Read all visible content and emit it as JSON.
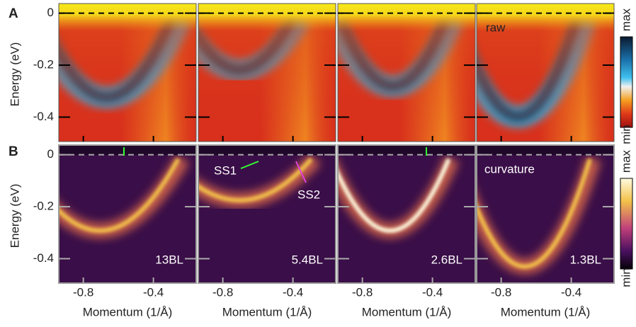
{
  "figure": {
    "panels": [
      {
        "label": "A",
        "annotation": "raw",
        "colorbar": {
          "top": "max",
          "bottom": "min"
        }
      },
      {
        "label": "B",
        "annotation": "curvature",
        "colorbar": {
          "top": "max",
          "bottom": "min"
        }
      }
    ],
    "samples": [
      "13BL",
      "5.4BL",
      "2.6BL",
      "1.3BL"
    ],
    "arrows": [
      "SS1",
      "SS2"
    ],
    "ylabel": "Energy (eV)",
    "xlabel": "Momentum (1/Å)",
    "ylim": [
      0.037,
      -0.494
    ],
    "yticks": [
      0,
      -0.2,
      -0.4
    ],
    "xlim": [
      -0.94,
      -0.156
    ],
    "xticks": [
      -0.8,
      -0.4
    ]
  }
}
